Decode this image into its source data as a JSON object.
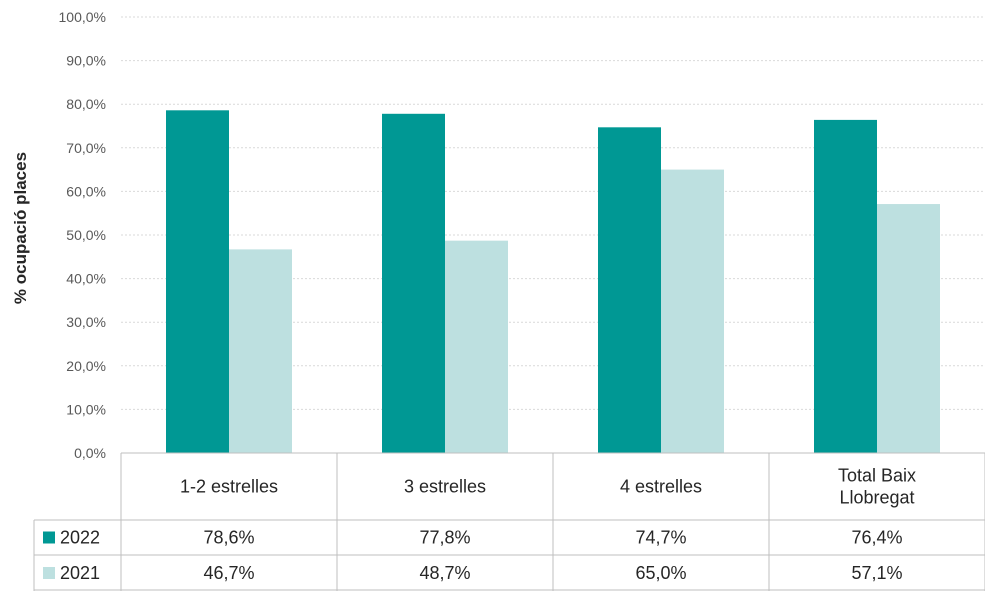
{
  "chart_data": {
    "type": "bar",
    "ylabel": "% ocupació places",
    "ylim": [
      0,
      100
    ],
    "yticks": [
      "0,0%",
      "10,0%",
      "20,0%",
      "30,0%",
      "40,0%",
      "50,0%",
      "60,0%",
      "70,0%",
      "80,0%",
      "90,0%",
      "100,0%"
    ],
    "categories": [
      [
        "1-2 estrelles"
      ],
      [
        "3 estrelles"
      ],
      [
        "4 estrelles"
      ],
      [
        "Total Baix",
        "Llobregat"
      ]
    ],
    "series": [
      {
        "name": "2022",
        "color": "#009894",
        "values": [
          78.6,
          77.8,
          74.7,
          76.4
        ],
        "labels": [
          "78,6%",
          "77,8%",
          "74,7%",
          "76,4%"
        ]
      },
      {
        "name": "2021",
        "color": "#BDE0E0",
        "values": [
          46.7,
          48.7,
          65.0,
          57.1
        ],
        "labels": [
          "46,7%",
          "48,7%",
          "65,0%",
          "57,1%"
        ]
      }
    ],
    "grid": true,
    "legend": "data-table"
  }
}
